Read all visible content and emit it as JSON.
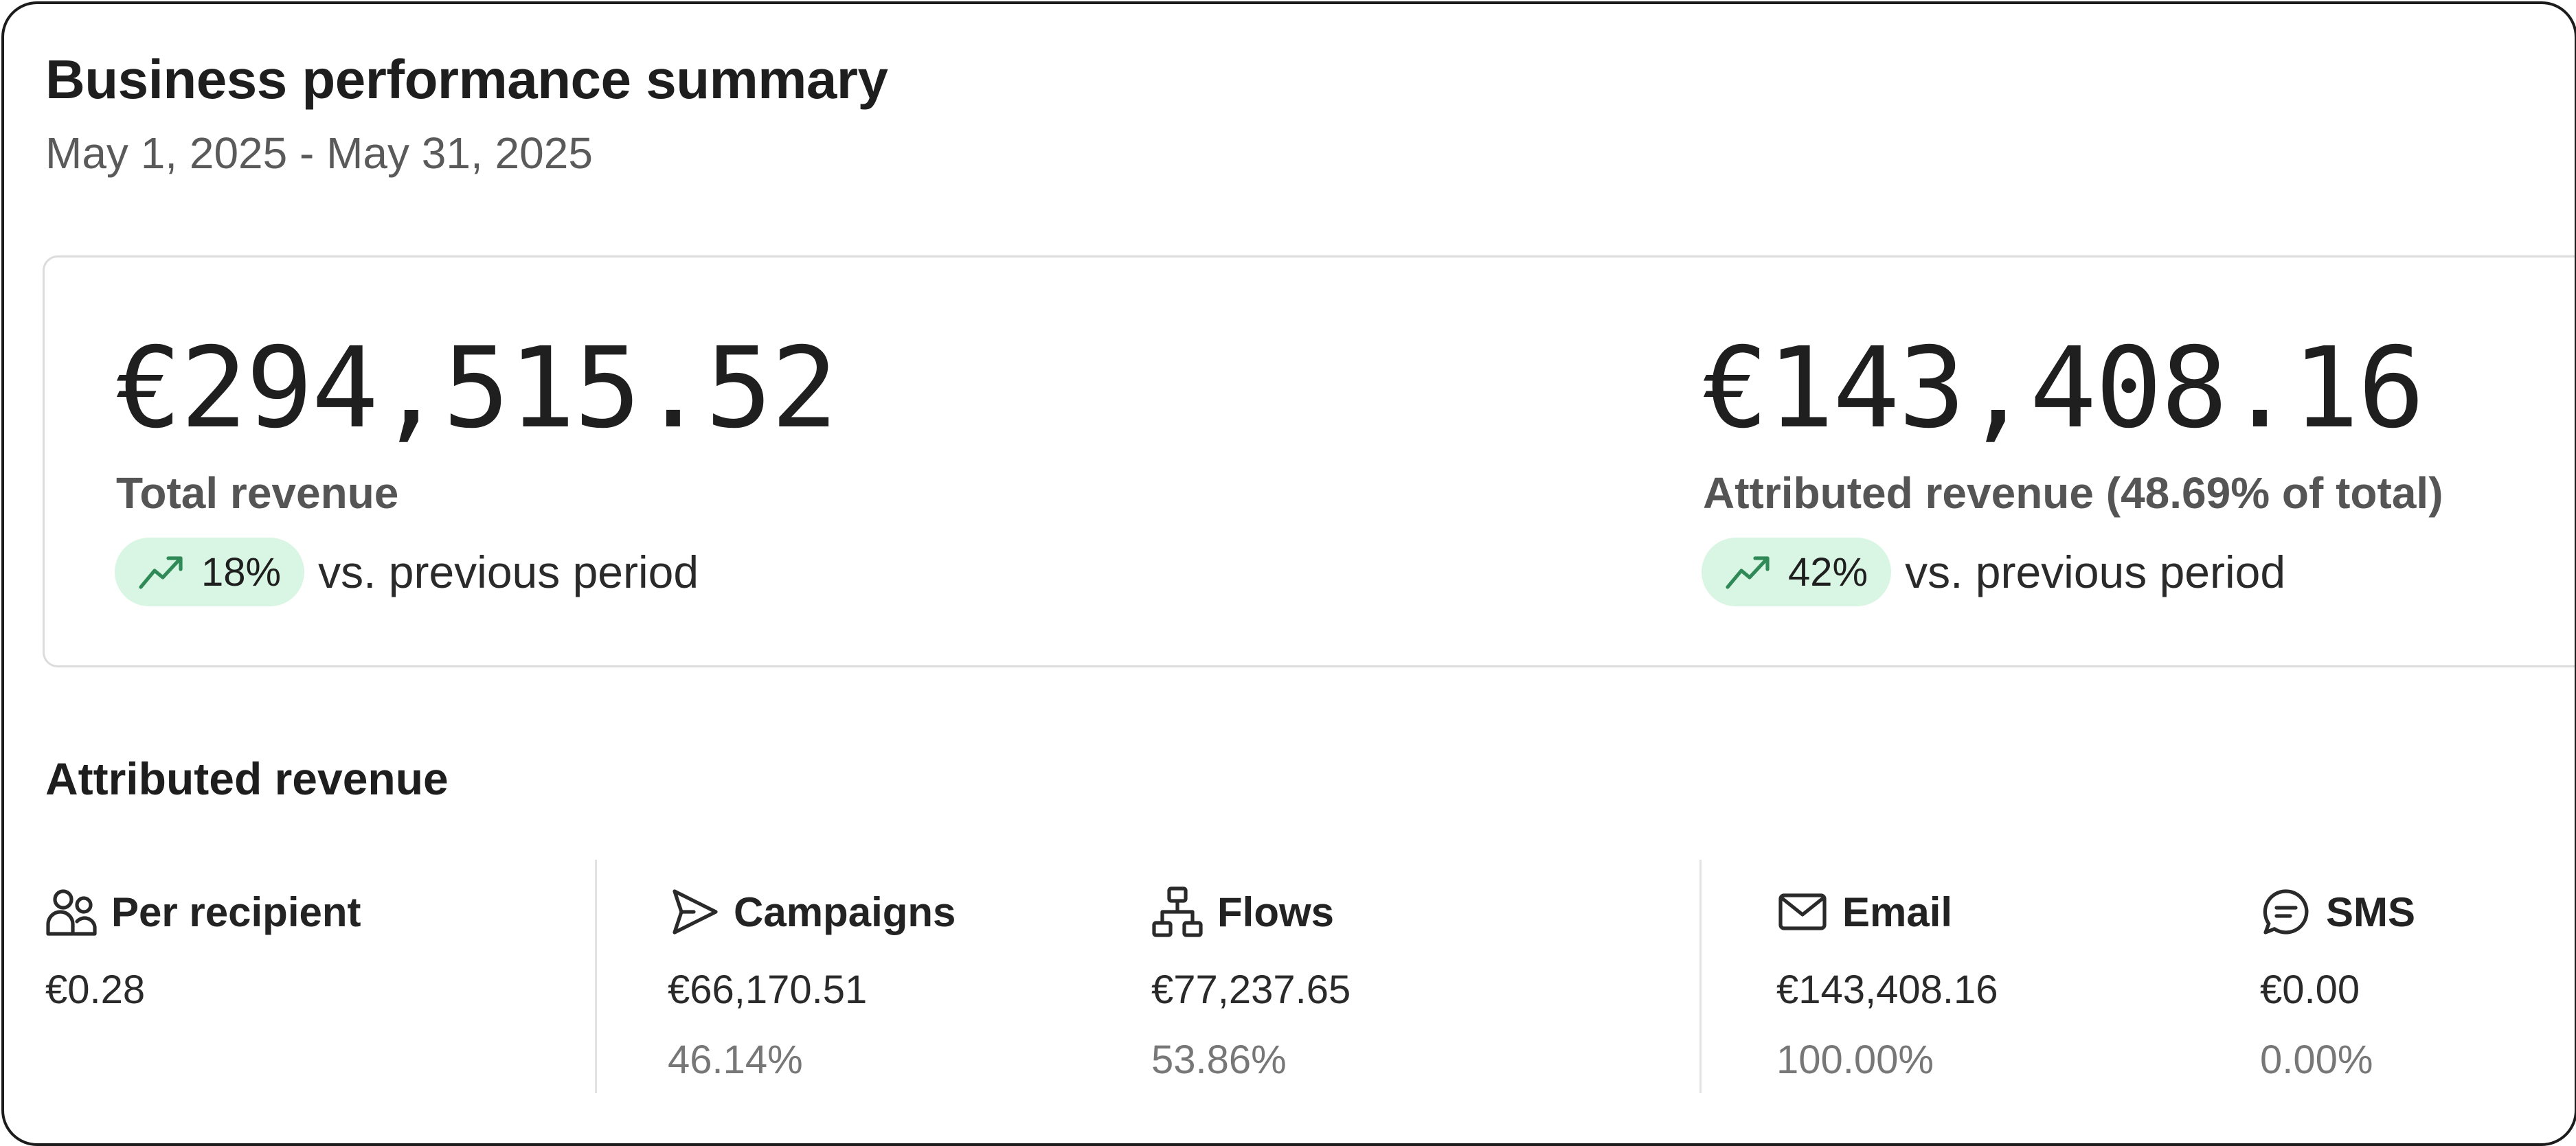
{
  "header": {
    "title": "Business performance summary",
    "date_range": "May 1, 2025 - May 31, 2025"
  },
  "kpis": [
    {
      "value": "€294,515.52",
      "label": "Total revenue",
      "change": "18%",
      "change_direction": "up",
      "comparison": "vs. previous period"
    },
    {
      "value": "€143,408.16",
      "label": "Attributed revenue (48.69% of total)",
      "change": "42%",
      "change_direction": "up",
      "comparison": "vs. previous period"
    }
  ],
  "attributed": {
    "title": "Attributed revenue",
    "metrics": [
      {
        "icon": "users-icon",
        "name": "Per recipient",
        "value": "€0.28",
        "percent": ""
      },
      {
        "icon": "send-icon",
        "name": "Campaigns",
        "value": "€66,170.51",
        "percent": "46.14%"
      },
      {
        "icon": "flow-icon",
        "name": "Flows",
        "value": "€77,237.65",
        "percent": "53.86%"
      },
      {
        "icon": "mail-icon",
        "name": "Email",
        "value": "€143,408.16",
        "percent": "100.00%"
      },
      {
        "icon": "chat-icon",
        "name": "SMS",
        "value": "€0.00",
        "percent": "0.00%"
      }
    ]
  },
  "colors": {
    "trend_badge_bg": "#d9f5e3",
    "trend_icon": "#2f8a57",
    "muted_text": "#777777"
  }
}
